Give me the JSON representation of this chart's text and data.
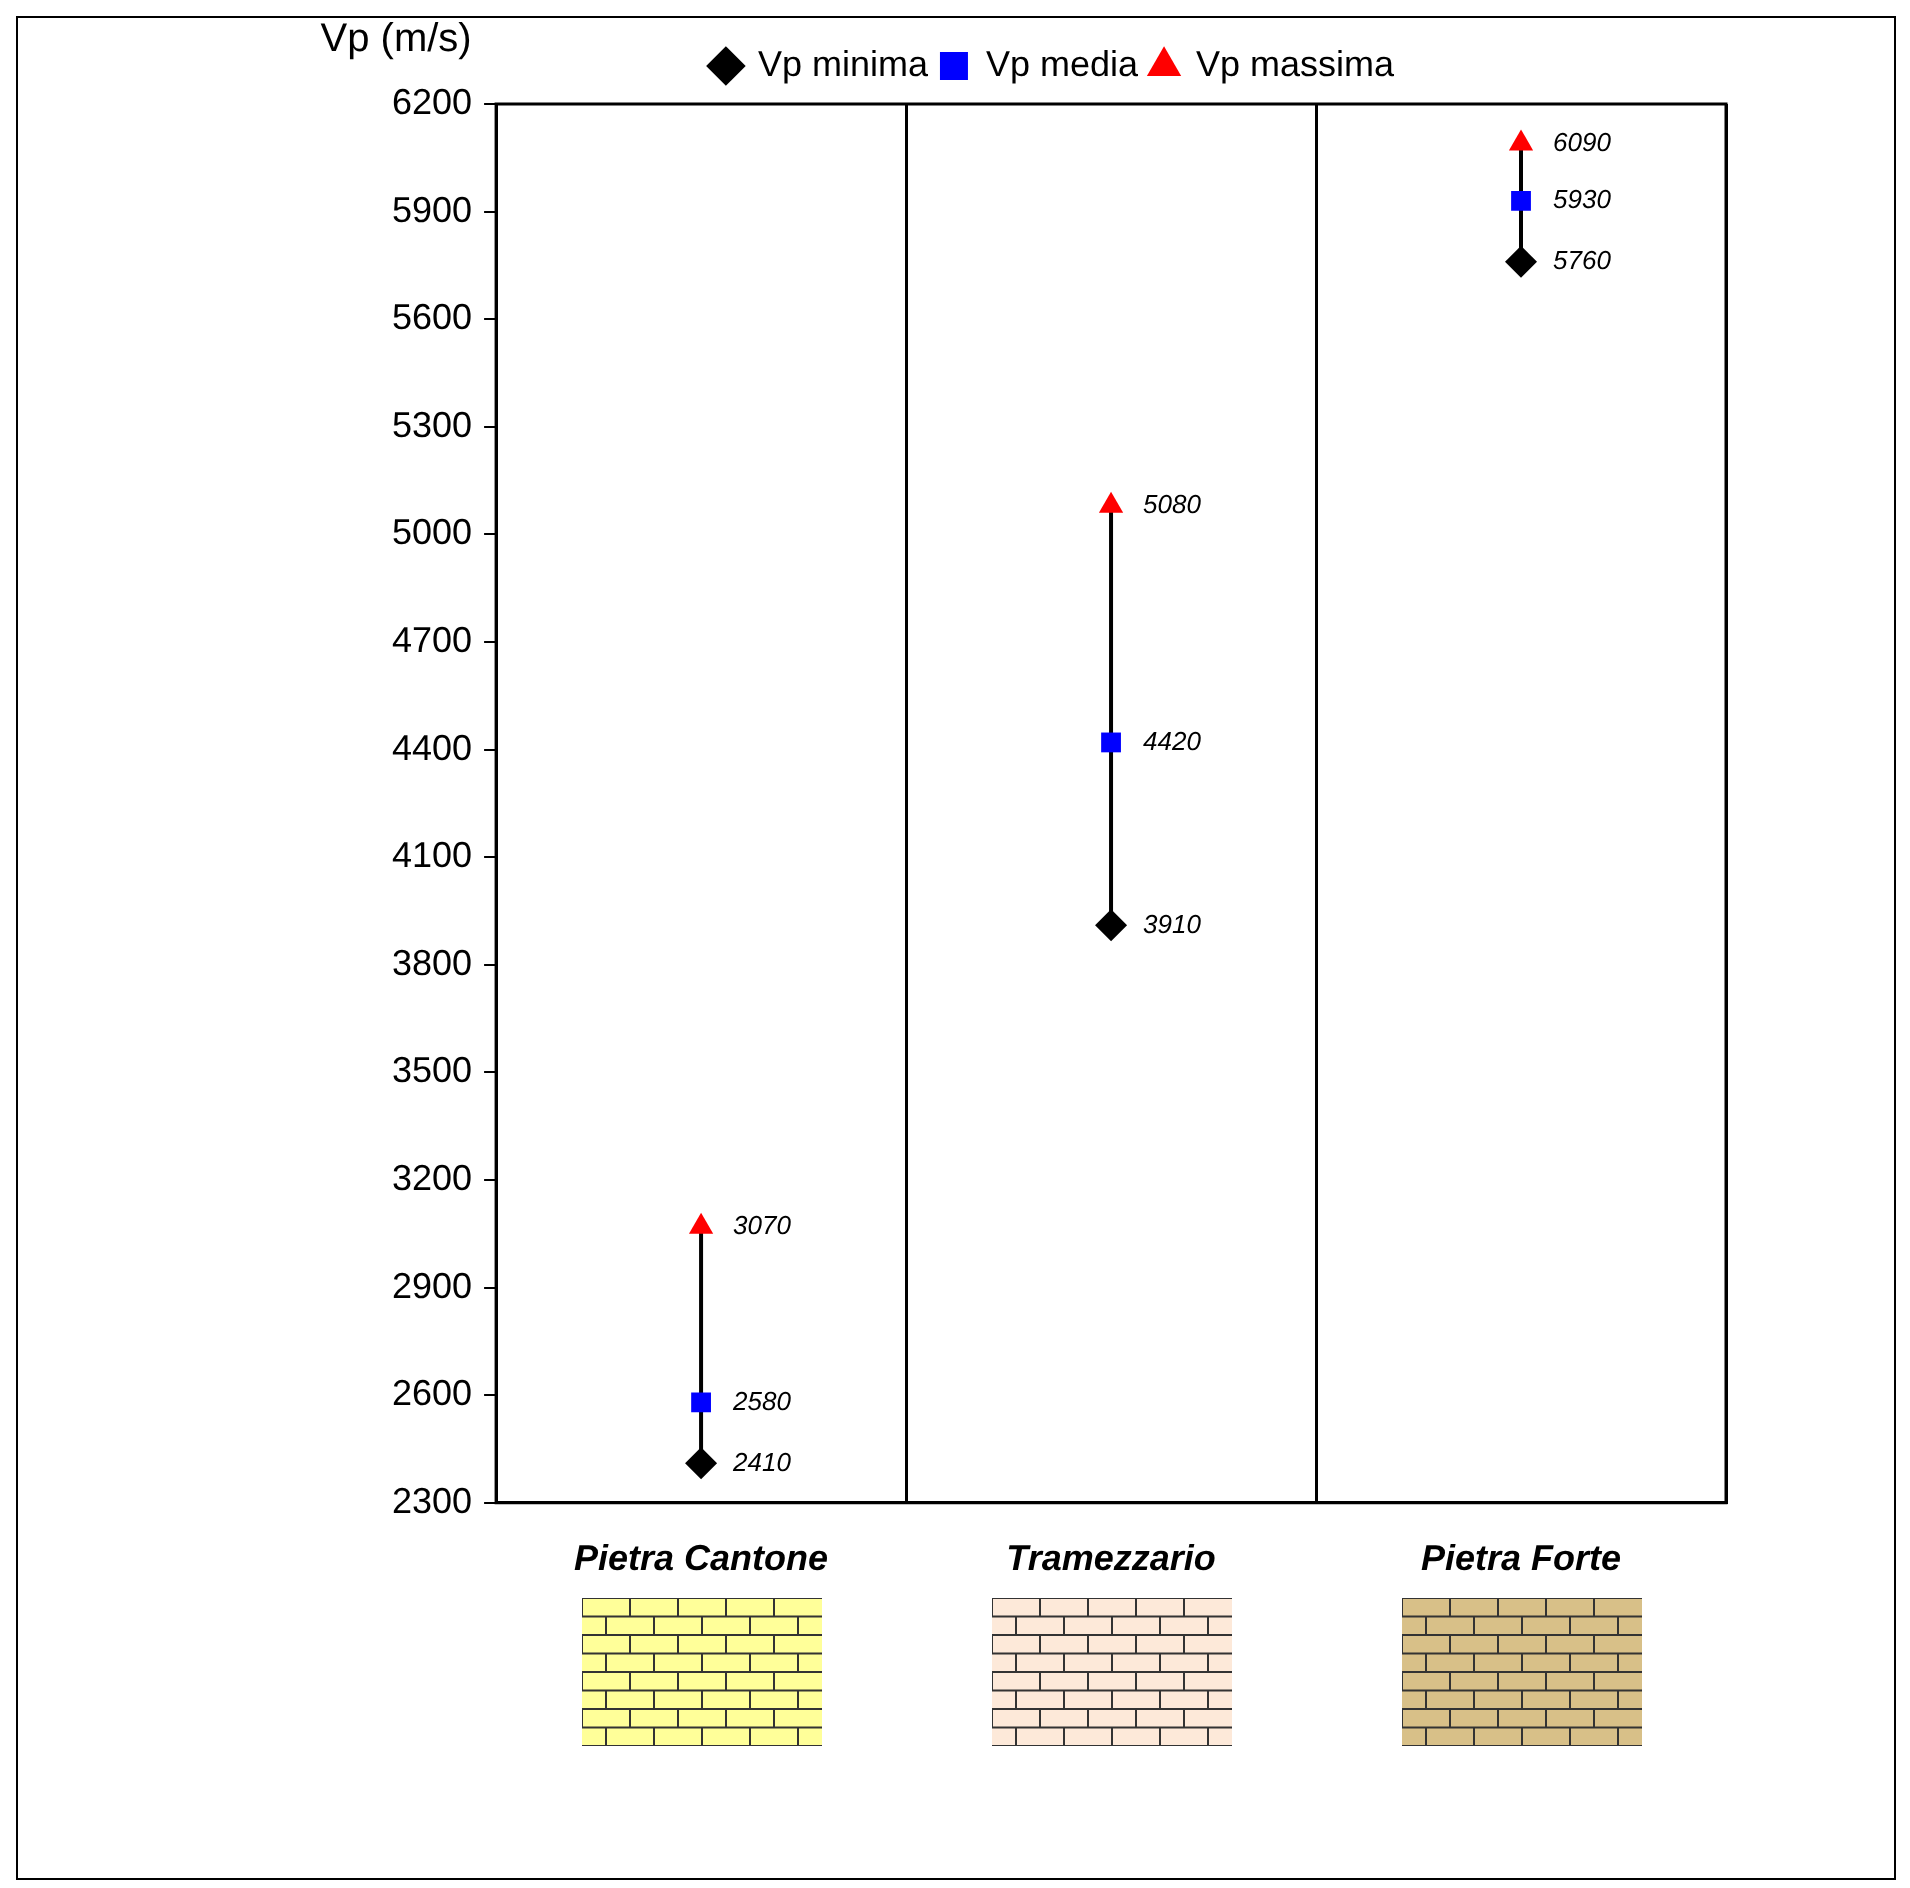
{
  "chart_data": {
    "type": "scatter",
    "ylabel": "Vp (m/s)",
    "categories": [
      "Pietra Cantone",
      "Tramezzario",
      "Pietra Forte"
    ],
    "series": [
      {
        "name": "Vp minima",
        "color": "#000000",
        "marker": "diamond",
        "values": [
          2410,
          3910,
          5760
        ]
      },
      {
        "name": "Vp media",
        "color": "#0000ff",
        "marker": "square",
        "values": [
          2580,
          4420,
          5930
        ]
      },
      {
        "name": "Vp massima",
        "color": "#ff0000",
        "marker": "triangle",
        "values": [
          3070,
          5080,
          6090
        ]
      }
    ],
    "ylim": [
      2300,
      6200
    ],
    "yticks": [
      2300,
      2600,
      2900,
      3200,
      3500,
      3800,
      4100,
      4400,
      4700,
      5000,
      5300,
      5600,
      5900,
      6200
    ],
    "grid": "x",
    "legend": "top",
    "data_labels": true
  }
}
